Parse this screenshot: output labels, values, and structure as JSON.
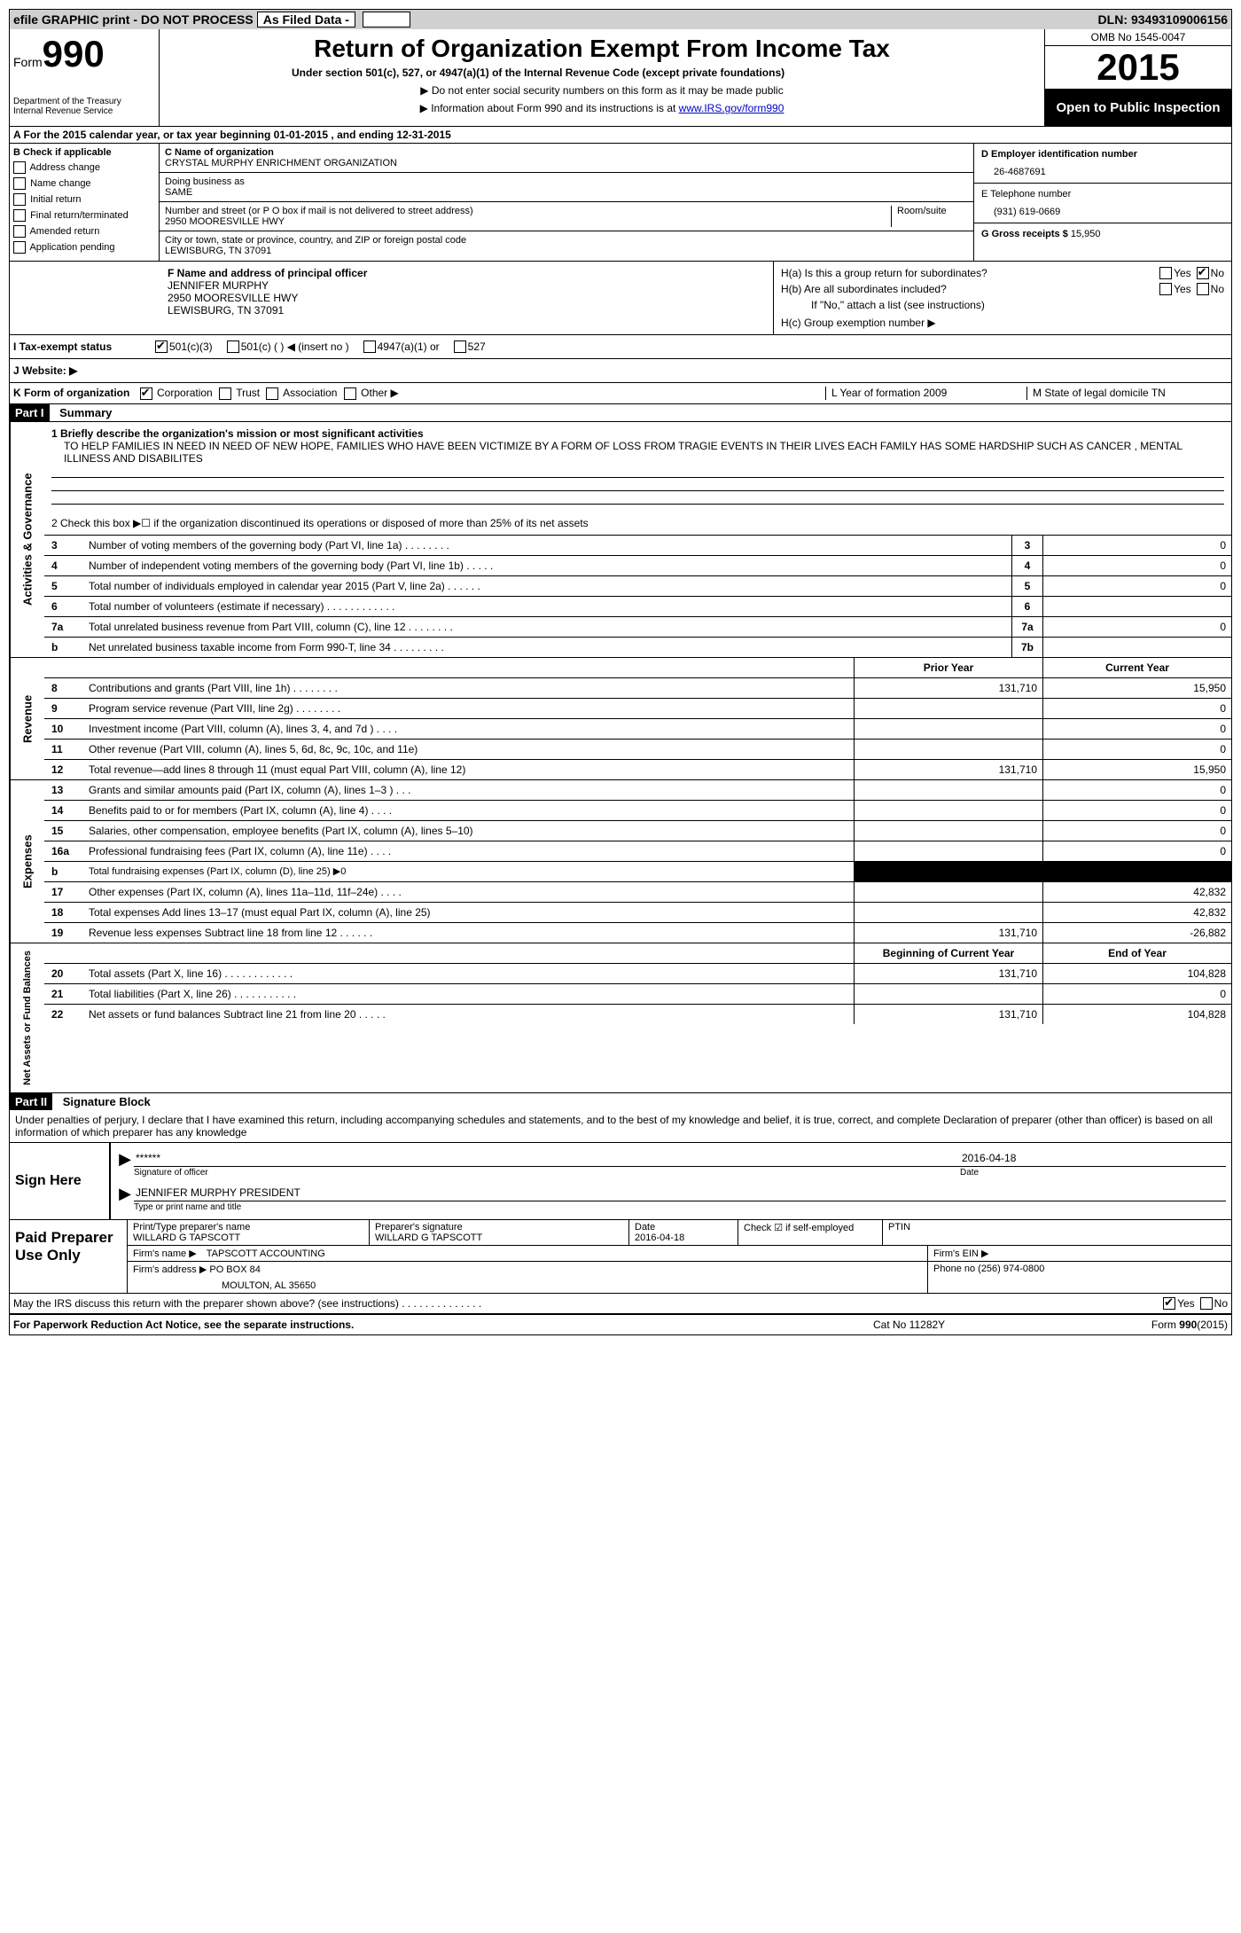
{
  "topbar": {
    "efile": "efile GRAPHIC print - DO NOT PROCESS",
    "asfiled": "As Filed Data -",
    "dln_label": "DLN:",
    "dln": "93493109006156"
  },
  "header": {
    "form_label": "Form",
    "form_num": "990",
    "dept1": "Department of the Treasury",
    "dept2": "Internal Revenue Service",
    "title": "Return of Organization Exempt From Income Tax",
    "subtitle": "Under section 501(c), 527, or 4947(a)(1) of the Internal Revenue Code (except private foundations)",
    "sub2a": "▶ Do not enter social security numbers on this form as it may be made public",
    "sub2b_pre": "▶ Information about Form 990 and its instructions is at ",
    "sub2b_link": "www.IRS.gov/form990",
    "omb": "OMB No 1545-0047",
    "year": "2015",
    "open": "Open to Public Inspection"
  },
  "rowA": {
    "text_pre": "A  For the 2015 calendar year, or tax year beginning ",
    "begin": "01-01-2015",
    "mid": " , and ending ",
    "end": "12-31-2015"
  },
  "colB": {
    "head": "B Check if applicable",
    "addr": "Address change",
    "name": "Name change",
    "init": "Initial return",
    "final": "Final return/terminated",
    "amend": "Amended return",
    "app": "Application pending"
  },
  "colC": {
    "c_label": "C Name of organization",
    "org": "CRYSTAL MURPHY ENRICHMENT ORGANIZATION",
    "dba_label": "Doing business as",
    "dba": "SAME",
    "street_label": "Number and street (or P O  box if mail is not delivered to street address)",
    "street": "2950 MOORESVILLE HWY",
    "room_label": "Room/suite",
    "city_label": "City or town, state or province, country, and ZIP or foreign postal code",
    "city": "LEWISBURG, TN  37091"
  },
  "colD": {
    "d_label": "D Employer identification number",
    "ein": "26-4687691",
    "e_label": "E Telephone number",
    "phone": "(931) 619-0669",
    "g_label": "G Gross receipts $",
    "gross": "15,950"
  },
  "colF": {
    "label": "F  Name and address of principal officer",
    "name": "JENNIFER MURPHY",
    "addr1": "2950 MOORESVILLE HWY",
    "addr2": "LEWISBURG, TN  37091"
  },
  "colH": {
    "ha": "H(a)  Is this a group return for subordinates?",
    "hb": "H(b)  Are all subordinates included?",
    "hb2": "If \"No,\" attach a list  (see instructions)",
    "hc": "H(c)  Group exemption number ▶",
    "yes": "Yes",
    "no": "No"
  },
  "rowI": {
    "label": "I  Tax-exempt status",
    "o1": "501(c)(3)",
    "o2": "501(c) (   ) ◀ (insert no )",
    "o3": "4947(a)(1) or",
    "o4": "527"
  },
  "rowJ": {
    "label": "J  Website: ▶"
  },
  "rowK": {
    "k": "K Form of organization",
    "corp": "Corporation",
    "trust": "Trust",
    "assoc": "Association",
    "other": "Other ▶",
    "l": "L Year of formation  2009",
    "m": "M State of legal domicile  TN"
  },
  "part1": {
    "header": "Part I",
    "title": "Summary"
  },
  "mission": {
    "l1": "1 Briefly describe the organization's mission or most significant activities",
    "text": "TO HELP FAMILIES IN NEED IN NEED OF NEW HOPE, FAMILIES WHO HAVE BEEN VICTIMIZE BY A FORM OF LOSS FROM TRAGIE EVENTS IN THEIR LIVES  EACH FAMILY HAS SOME HARDSHIP SUCH AS CANCER , MENTAL ILLINESS AND DISABILITES",
    "l2": "2  Check this box ▶☐ if the organization discontinued its operations or disposed of more than 25% of its net assets"
  },
  "gov_label": "Activities & Governance",
  "rev_label": "Revenue",
  "exp_label": "Expenses",
  "net_label": "Net Assets or Fund Balances",
  "gov_rows": [
    {
      "n": "3",
      "d": "Number of voting members of the governing body (Part VI, line 1a)  .   .   .   .   .   .   .   .",
      "box": "3",
      "v": "0"
    },
    {
      "n": "4",
      "d": "Number of independent voting members of the governing body (Part VI, line 1b)  .   .   .   .   .",
      "box": "4",
      "v": "0"
    },
    {
      "n": "5",
      "d": "Total number of individuals employed in calendar year 2015 (Part V, line 2a)  .   .   .   .   .   .",
      "box": "5",
      "v": "0"
    },
    {
      "n": "6",
      "d": "Total number of volunteers (estimate if necessary)   .   .   .   .   .   .   .   .   .   .   .   .",
      "box": "6",
      "v": ""
    },
    {
      "n": "7a",
      "d": "Total unrelated business revenue from Part VIII, column (C), line 12  .   .   .   .   .   .   .   .",
      "box": "7a",
      "v": "0"
    },
    {
      "n": "b",
      "d": "Net unrelated business taxable income from Form 990-T, line 34   .   .   .   .   .   .   .   .   .",
      "box": "7b",
      "v": ""
    }
  ],
  "rev_head": {
    "prior": "Prior Year",
    "curr": "Current Year"
  },
  "rev_rows": [
    {
      "n": "8",
      "d": "Contributions and grants (Part VIII, line 1h)   .   .   .   .   .   .   .   .",
      "p": "131,710",
      "c": "15,950"
    },
    {
      "n": "9",
      "d": "Program service revenue (Part VIII, line 2g)   .   .   .   .   .   .   .   .",
      "p": "",
      "c": "0"
    },
    {
      "n": "10",
      "d": "Investment income (Part VIII, column (A), lines 3, 4, and 7d )   .   .   .   .",
      "p": "",
      "c": "0"
    },
    {
      "n": "11",
      "d": "Other revenue (Part VIII, column (A), lines 5, 6d, 8c, 9c, 10c, and 11e)",
      "p": "",
      "c": "0"
    },
    {
      "n": "12",
      "d": "Total revenue—add lines 8 through 11 (must equal Part VIII, column (A), line 12)",
      "p": "131,710",
      "c": "15,950"
    }
  ],
  "exp_rows": [
    {
      "n": "13",
      "d": "Grants and similar amounts paid (Part IX, column (A), lines 1–3 )   .   .   .",
      "p": "",
      "c": "0"
    },
    {
      "n": "14",
      "d": "Benefits paid to or for members (Part IX, column (A), line 4)   .   .   .   .",
      "p": "",
      "c": "0"
    },
    {
      "n": "15",
      "d": "Salaries, other compensation, employee benefits (Part IX, column (A), lines 5–10)",
      "p": "",
      "c": "0"
    },
    {
      "n": "16a",
      "d": "Professional fundraising fees (Part IX, column (A), line 11e)   .   .   .   .",
      "p": "",
      "c": "0"
    },
    {
      "n": "b",
      "d": "Total fundraising expenses (Part IX, column (D), line 25) ▶0",
      "p": "SHADED",
      "c": "SHADED"
    },
    {
      "n": "17",
      "d": "Other expenses (Part IX, column (A), lines 11a–11d, 11f–24e)   .   .   .   .",
      "p": "",
      "c": "42,832"
    },
    {
      "n": "18",
      "d": "Total expenses  Add lines 13–17 (must equal Part IX, column (A), line 25)",
      "p": "",
      "c": "42,832"
    },
    {
      "n": "19",
      "d": "Revenue less expenses  Subtract line 18 from line 12   .   .   .   .   .   .",
      "p": "131,710",
      "c": "-26,882"
    }
  ],
  "net_head": {
    "prior": "Beginning of Current Year",
    "curr": "End of Year"
  },
  "net_rows": [
    {
      "n": "20",
      "d": "Total assets (Part X, line 16)   .   .   .   .   .   .   .   .   .   .   .   .",
      "p": "131,710",
      "c": "104,828"
    },
    {
      "n": "21",
      "d": "Total liabilities (Part X, line 26)   .   .   .   .   .   .   .   .   .   .   .",
      "p": "",
      "c": "0"
    },
    {
      "n": "22",
      "d": "Net assets or fund balances  Subtract line 21 from line 20   .   .   .   .   .",
      "p": "131,710",
      "c": "104,828"
    }
  ],
  "part2": {
    "header": "Part II",
    "title": "Signature Block",
    "decl": "Under penalties of perjury, I declare that I have examined this return, including accompanying schedules and statements, and to the best of my knowledge and belief, it is true, correct, and complete  Declaration of preparer (other than officer) is based on all information of which preparer has any knowledge"
  },
  "sign": {
    "here": "Sign Here",
    "stars": "******",
    "sig_of": "Signature of officer",
    "date": "2016-04-18",
    "date_lbl": "Date",
    "name": "JENNIFER MURPHY PRESIDENT",
    "type_lbl": "Type or print name and title"
  },
  "prep": {
    "label": "Paid Preparer Use Only",
    "pt_label": "Print/Type preparer's name",
    "pt_name": "WILLARD G TAPSCOTT",
    "sig_label": "Preparer's signature",
    "sig_name": "WILLARD G TAPSCOTT",
    "date_lbl": "Date",
    "date": "2016-04-18",
    "check_lbl": "Check ☑ if self-employed",
    "ptin": "PTIN",
    "firm_name_lbl": "Firm's name   ▶",
    "firm_name": "TAPSCOTT ACCOUNTING",
    "firm_ein_lbl": "Firm's EIN ▶",
    "firm_addr_lbl": "Firm's address ▶",
    "firm_addr": "PO BOX 84",
    "firm_city": "MOULTON, AL  35650",
    "phone_lbl": "Phone no  (256) 974-0800"
  },
  "footer": {
    "discuss": "May the IRS discuss this return with the preparer shown above? (see instructions)   .   .   .   .   .   .   .   .   .   .   .   .   .   .",
    "yes": "Yes",
    "no": "No",
    "pra": "For Paperwork Reduction Act Notice, see the separate instructions.",
    "cat": "Cat No  11282Y",
    "form": "Form 990 (2015)"
  }
}
